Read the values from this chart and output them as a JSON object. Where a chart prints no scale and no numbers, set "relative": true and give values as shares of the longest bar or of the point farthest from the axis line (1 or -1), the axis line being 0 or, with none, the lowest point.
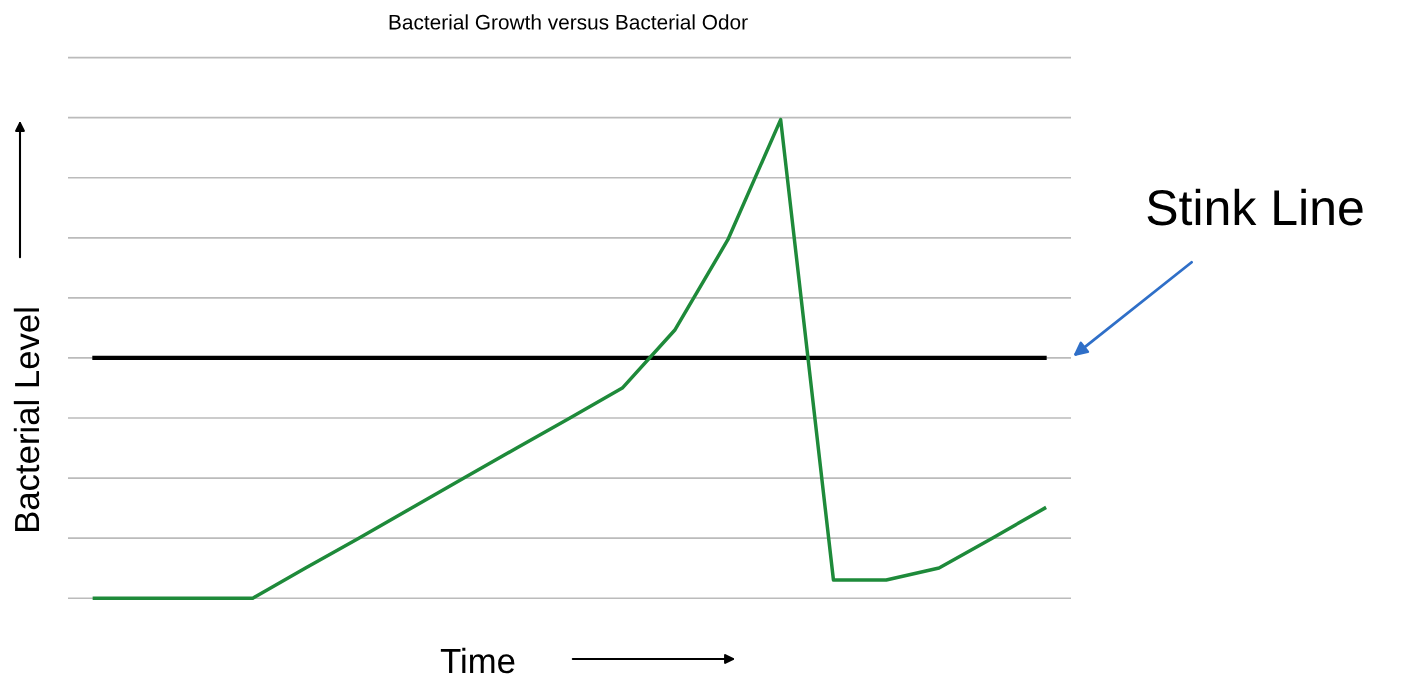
{
  "chart_data": {
    "type": "line",
    "title": "Bacterial Growth versus Bacterial Odor",
    "xlabel": "Time",
    "ylabel": "Bacterial Level",
    "relative": true,
    "grid": "y",
    "legend": false,
    "categories": [
      null,
      null,
      null,
      null,
      null,
      null,
      null,
      null,
      null,
      null,
      null,
      null,
      null,
      null,
      null,
      null,
      null,
      null,
      null
    ],
    "series": [
      {
        "color": "#1e8a3a",
        "values": [
          0,
          0,
          0,
          0,
          0.063,
          0.125,
          0.188,
          0.251,
          0.314,
          0.376,
          0.439,
          0.561,
          0.749,
          1,
          0.038,
          0.038,
          0.063,
          0.125,
          0.188
        ]
      }
    ],
    "ref_lines": [
      {
        "axis": "y",
        "value": 0.502,
        "label": "Stink Line",
        "color": "#000000"
      }
    ]
  }
}
